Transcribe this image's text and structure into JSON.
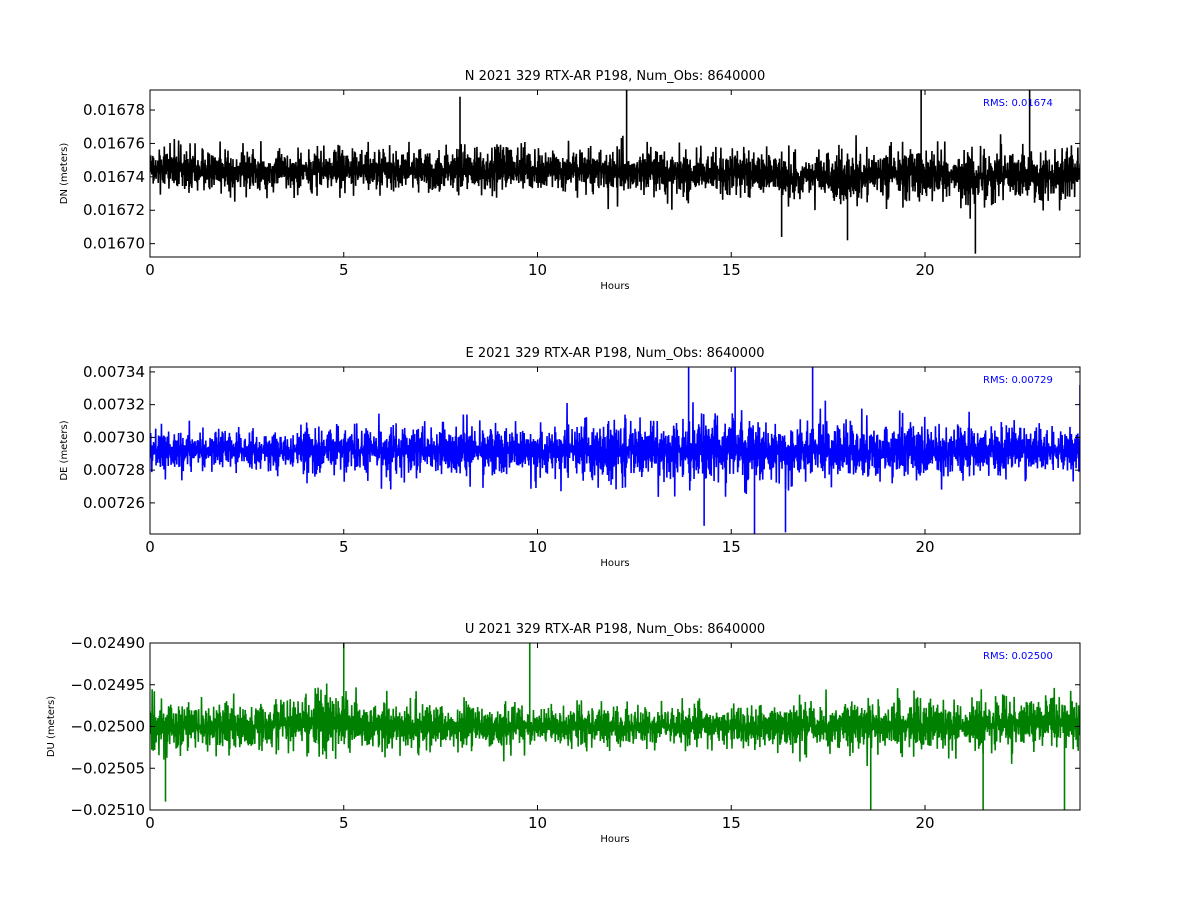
{
  "chart_data": [
    {
      "type": "line",
      "title": "N 2021 329 RTX-AR  P198, Num_Obs: 8640000",
      "xlabel": "Hours",
      "ylabel": "DN (meters)",
      "xlim": [
        0,
        24
      ],
      "ylim": [
        0.016692,
        0.016792
      ],
      "xticks": [
        0,
        5,
        10,
        15,
        20
      ],
      "xtick_labels": [
        "0",
        "5",
        "10",
        "15",
        "20"
      ],
      "yticks": [
        0.0167,
        0.01672,
        0.01674,
        0.01676,
        0.01678
      ],
      "ytick_labels": [
        "0.01670",
        "0.01672",
        "0.01674",
        "0.01676",
        "0.01678"
      ],
      "color": "#000000",
      "grid": false,
      "annotation": "RMS:  0.01674",
      "annotation_color": "#0000ff",
      "series": [
        {
          "x": [
            0,
            0.5,
            1,
            1.5,
            2,
            2.5,
            3,
            3.5,
            4,
            4.5,
            5,
            5.5,
            6,
            6.5,
            7,
            7.5,
            8,
            8.5,
            9,
            9.5,
            10,
            10.5,
            11,
            11.5,
            12,
            12.5,
            13,
            13.5,
            14,
            14.5,
            15,
            15.5,
            16,
            16.5,
            17,
            17.5,
            18,
            18.5,
            19,
            19.5,
            20,
            20.5,
            21,
            21.5,
            22,
            22.5,
            23,
            23.5,
            24
          ],
          "upper": [
            0.016769,
            0.016775,
            0.01677,
            0.016768,
            0.016768,
            0.016769,
            0.016767,
            0.016767,
            0.016769,
            0.016769,
            0.01677,
            0.016769,
            0.01677,
            0.016769,
            0.01677,
            0.016769,
            0.016771,
            0.01677,
            0.016771,
            0.016771,
            0.016771,
            0.016771,
            0.016772,
            0.016771,
            0.016771,
            0.01677,
            0.016771,
            0.016771,
            0.01677,
            0.016771,
            0.016771,
            0.01677,
            0.016769,
            0.016767,
            0.016766,
            0.016773,
            0.016772,
            0.016771,
            0.016772,
            0.016773,
            0.016773,
            0.016772,
            0.016773,
            0.016774,
            0.016773,
            0.016775,
            0.016773,
            0.016775,
            0.016772
          ],
          "lower": [
            0.016718,
            0.016716,
            0.016718,
            0.016719,
            0.016719,
            0.016719,
            0.01672,
            0.01672,
            0.016719,
            0.016719,
            0.016718,
            0.016719,
            0.016718,
            0.016719,
            0.016718,
            0.016718,
            0.016717,
            0.016717,
            0.016717,
            0.016717,
            0.016717,
            0.016716,
            0.016715,
            0.016716,
            0.016716,
            0.016716,
            0.016716,
            0.016716,
            0.016715,
            0.016714,
            0.016713,
            0.016714,
            0.016716,
            0.016712,
            0.016715,
            0.016708,
            0.016707,
            0.016711,
            0.016714,
            0.016713,
            0.016711,
            0.016711,
            0.016707,
            0.016705,
            0.016709,
            0.016708,
            0.016708,
            0.016708,
            0.016712
          ],
          "spikes": [
            {
              "x": 8.0,
              "y": 0.016788
            },
            {
              "x": 12.3,
              "y": 0.016793
            },
            {
              "x": 19.9,
              "y": 0.016793
            },
            {
              "x": 22.7,
              "y": 0.016792
            },
            {
              "x": 21.3,
              "y": 0.016694
            },
            {
              "x": 16.3,
              "y": 0.016704
            },
            {
              "x": 18.0,
              "y": 0.016702
            }
          ]
        }
      ]
    },
    {
      "type": "line",
      "title": "E 2021 329 RTX-AR  P198, Num_Obs: 8640000",
      "xlabel": "Hours",
      "ylabel": "DE (meters)",
      "xlim": [
        0,
        24
      ],
      "ylim": [
        0.007241,
        0.007343
      ],
      "xticks": [
        0,
        5,
        10,
        15,
        20
      ],
      "xtick_labels": [
        "0",
        "5",
        "10",
        "15",
        "20"
      ],
      "yticks": [
        0.00726,
        0.00728,
        0.0073,
        0.00732,
        0.00734
      ],
      "ytick_labels": [
        "0.00726",
        "0.00728",
        "0.00730",
        "0.00732",
        "0.00734"
      ],
      "color": "#0000ff",
      "grid": false,
      "annotation": "RMS:  0.00729",
      "annotation_color": "#0000ff",
      "series": [
        {
          "x": [
            0,
            0.5,
            1,
            1.5,
            2,
            2.5,
            3,
            3.5,
            4,
            4.5,
            5,
            5.5,
            6,
            6.5,
            7,
            7.5,
            8,
            8.5,
            9,
            9.5,
            10,
            10.5,
            11,
            11.5,
            12,
            12.5,
            13,
            13.5,
            14,
            14.5,
            15,
            15.5,
            16,
            16.5,
            17,
            17.5,
            18,
            18.5,
            19,
            19.5,
            20,
            20.5,
            21,
            21.5,
            22,
            22.5,
            23,
            23.5,
            24
          ],
          "upper": [
            0.007318,
            0.007318,
            0.007318,
            0.007318,
            0.007317,
            0.007317,
            0.007317,
            0.007317,
            0.007319,
            0.007319,
            0.007321,
            0.00732,
            0.007321,
            0.007321,
            0.007322,
            0.007322,
            0.007323,
            0.007323,
            0.007324,
            0.007325,
            0.007325,
            0.007326,
            0.007327,
            0.007328,
            0.007329,
            0.00733,
            0.007331,
            0.007331,
            0.007332,
            0.007332,
            0.007332,
            0.007331,
            0.00733,
            0.007329,
            0.007328,
            0.007327,
            0.007327,
            0.007326,
            0.007325,
            0.007325,
            0.007324,
            0.007324,
            0.007323,
            0.007322,
            0.007322,
            0.007321,
            0.007321,
            0.00732,
            0.00732
          ],
          "lower": [
            0.007266,
            0.007266,
            0.007266,
            0.007266,
            0.007267,
            0.007267,
            0.007267,
            0.007267,
            0.007265,
            0.007265,
            0.007264,
            0.007264,
            0.007263,
            0.007263,
            0.007262,
            0.007262,
            0.007261,
            0.007261,
            0.00726,
            0.007259,
            0.007259,
            0.007258,
            0.007257,
            0.007256,
            0.007255,
            0.007254,
            0.007253,
            0.007253,
            0.007252,
            0.007252,
            0.007252,
            0.007253,
            0.007254,
            0.007255,
            0.007256,
            0.007257,
            0.007257,
            0.007258,
            0.007259,
            0.007259,
            0.00726,
            0.00726,
            0.007261,
            0.007262,
            0.007262,
            0.007263,
            0.007263,
            0.007264,
            0.007264
          ],
          "spikes": [
            {
              "x": 13.9,
              "y": 0.007343
            },
            {
              "x": 15.1,
              "y": 0.007343
            },
            {
              "x": 17.1,
              "y": 0.007343
            },
            {
              "x": 24.0,
              "y": 0.007332
            },
            {
              "x": 14.3,
              "y": 0.007246
            },
            {
              "x": 15.6,
              "y": 0.007241
            },
            {
              "x": 16.4,
              "y": 0.007242
            }
          ]
        }
      ]
    },
    {
      "type": "line",
      "title": "U 2021 329 RTX-AR  P198, Num_Obs: 8640000",
      "xlabel": "Hours",
      "ylabel": "DU (meters)",
      "xlim": [
        0,
        24
      ],
      "ylim": [
        -0.0251,
        -0.0249
      ],
      "xticks": [
        0,
        5,
        10,
        15,
        20
      ],
      "xtick_labels": [
        "0",
        "5",
        "10",
        "15",
        "20"
      ],
      "yticks": [
        -0.0251,
        -0.02505,
        -0.025,
        -0.02495,
        -0.0249
      ],
      "ytick_labels": [
        "−0.02510",
        "−0.02505",
        "−0.02500",
        "−0.02495",
        "−0.02490"
      ],
      "color": "#008000",
      "grid": false,
      "annotation": "RMS:  0.02500",
      "annotation_color": "#0000ff",
      "series": [
        {
          "x": [
            0,
            0.5,
            1,
            1.5,
            2,
            2.5,
            3,
            3.5,
            4,
            4.5,
            5,
            5.5,
            6,
            6.5,
            7,
            7.5,
            8,
            8.5,
            9,
            9.5,
            10,
            10.5,
            11,
            11.5,
            12,
            12.5,
            13,
            13.5,
            14,
            14.5,
            15,
            15.5,
            16,
            16.5,
            17,
            17.5,
            18,
            18.5,
            19,
            19.5,
            20,
            20.5,
            21,
            21.5,
            22,
            22.5,
            23,
            23.5,
            24
          ],
          "upper": [
            -0.02494,
            -0.02494,
            -0.02494,
            -0.02494,
            -0.02494,
            -0.02494,
            -0.02494,
            -0.02493,
            -0.02493,
            -0.02493,
            -0.02493,
            -0.02494,
            -0.02494,
            -0.02494,
            -0.02494,
            -0.02495,
            -0.02495,
            -0.02495,
            -0.02495,
            -0.02495,
            -0.02495,
            -0.02495,
            -0.02495,
            -0.02495,
            -0.02495,
            -0.02495,
            -0.02495,
            -0.02495,
            -0.02495,
            -0.02495,
            -0.02495,
            -0.02495,
            -0.02495,
            -0.02494,
            -0.02494,
            -0.02494,
            -0.02494,
            -0.02494,
            -0.02494,
            -0.02494,
            -0.02494,
            -0.02494,
            -0.02494,
            -0.02494,
            -0.02493,
            -0.02493,
            -0.02493,
            -0.02493,
            -0.02494
          ],
          "lower": [
            -0.02506,
            -0.02506,
            -0.02506,
            -0.02506,
            -0.02506,
            -0.02506,
            -0.02506,
            -0.02506,
            -0.02506,
            -0.02506,
            -0.02506,
            -0.02506,
            -0.02506,
            -0.02506,
            -0.02506,
            -0.02505,
            -0.02505,
            -0.02505,
            -0.02505,
            -0.02505,
            -0.02505,
            -0.02505,
            -0.02505,
            -0.02505,
            -0.02505,
            -0.02505,
            -0.02505,
            -0.02505,
            -0.02505,
            -0.02505,
            -0.02505,
            -0.02505,
            -0.02505,
            -0.02506,
            -0.02506,
            -0.02506,
            -0.02506,
            -0.02506,
            -0.02506,
            -0.02506,
            -0.02506,
            -0.02506,
            -0.02506,
            -0.02506,
            -0.02506,
            -0.02506,
            -0.02506,
            -0.02506,
            -0.02506
          ],
          "spikes": [
            {
              "x": 5.0,
              "y": -0.0249
            },
            {
              "x": 9.8,
              "y": -0.0249
            },
            {
              "x": 0.4,
              "y": -0.02509
            },
            {
              "x": 18.6,
              "y": -0.0251
            },
            {
              "x": 21.5,
              "y": -0.0251
            },
            {
              "x": 23.6,
              "y": -0.0251
            }
          ]
        }
      ]
    }
  ]
}
